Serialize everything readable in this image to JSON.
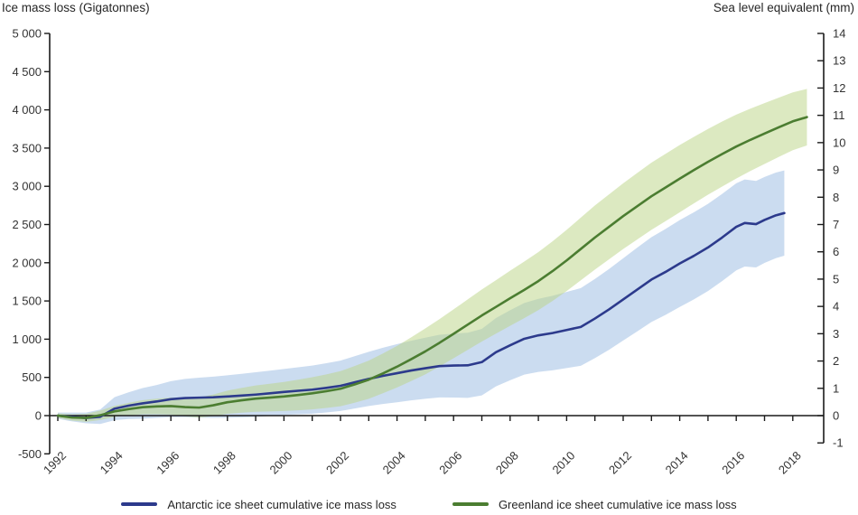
{
  "header": {
    "left_axis_title": "Ice mass loss (Gigatonnes)",
    "right_axis_title": "Sea level equivalent (mm)"
  },
  "legend": [
    {
      "label": "Antarctic ice sheet cumulative ice mass loss",
      "color": "#2c3a8c"
    },
    {
      "label": "Greenland ice sheet cumulative ice mass loss",
      "color": "#4b7d31"
    }
  ],
  "colors": {
    "antarctic_line": "#2c3a8c",
    "antarctic_band": "#9cbce2",
    "greenland_line": "#4b7d31",
    "greenland_band": "#bcd489",
    "axis": "#1a1a1a",
    "tick_text": "#333333",
    "background": "#ffffff"
  },
  "chart_data": {
    "type": "line",
    "title": "",
    "xlabel": "",
    "ylabel_left": "Ice mass loss (Gigatonnes)",
    "ylabel_right": "Sea level equivalent (mm)",
    "grid": false,
    "legend_position": "bottom",
    "xlim": [
      1991.7,
      2018.8
    ],
    "ylim_left": [
      -500,
      5000
    ],
    "ylim_right": [
      -1,
      14
    ],
    "x_axis": {
      "tick_years": [
        1992,
        1993,
        1994,
        1995,
        1996,
        1997,
        1998,
        1999,
        2000,
        2001,
        2002,
        2003,
        2004,
        2005,
        2006,
        2007,
        2008,
        2009,
        2010,
        2011,
        2012,
        2013,
        2014,
        2015,
        2016,
        2017,
        2018
      ],
      "label_years": [
        1992,
        1994,
        1996,
        1998,
        2000,
        2002,
        2004,
        2006,
        2008,
        2010,
        2012,
        2014,
        2016,
        2018
      ],
      "tick_labels": [
        "1992",
        "1994",
        "1996",
        "1998",
        "2000",
        "2002",
        "2004",
        "2006",
        "2008",
        "2010",
        "2012",
        "2014",
        "2016",
        "2018"
      ]
    },
    "y_left_axis": {
      "tick_values": [
        5000,
        4500,
        4000,
        3500,
        3000,
        2500,
        2000,
        1500,
        1000,
        500,
        0,
        -500
      ],
      "tick_labels": [
        "5 000",
        "4 500",
        "4 000",
        "3 500",
        "3 000",
        "2 500",
        "2 000",
        "1 500",
        "1 000",
        "500",
        "0",
        "-500"
      ]
    },
    "y_right_axis": {
      "tick_values": [
        14,
        13,
        12,
        11,
        10,
        9,
        8,
        7,
        6,
        5,
        4,
        3,
        2,
        1,
        0,
        -1
      ],
      "tick_labels": [
        "14",
        "13",
        "12",
        "11",
        "10",
        "9",
        "8",
        "7",
        "6",
        "5",
        "4",
        "3",
        "2",
        "1",
        "0",
        "-1"
      ]
    },
    "series": [
      {
        "id": "antarctic",
        "name": "Antarctic ice sheet cumulative ice mass loss",
        "unit": "Gigatonnes",
        "color": "#2c3a8c",
        "band_color": "#9cbce2",
        "note": "points are [year, cumulative_mass_loss_Gt, uncertainty_half_width_Gt]",
        "points": [
          [
            1992.0,
            0,
            40
          ],
          [
            1992.4,
            -15,
            55
          ],
          [
            1993.0,
            -30,
            70
          ],
          [
            1993.5,
            -15,
            95
          ],
          [
            1994.0,
            90,
            150
          ],
          [
            1994.5,
            130,
            175
          ],
          [
            1995.0,
            160,
            200
          ],
          [
            1995.5,
            185,
            215
          ],
          [
            1996.0,
            215,
            235
          ],
          [
            1996.5,
            230,
            250
          ],
          [
            1997.0,
            235,
            262
          ],
          [
            1997.5,
            240,
            270
          ],
          [
            1998.0,
            250,
            278
          ],
          [
            1998.5,
            262,
            285
          ],
          [
            1999.0,
            275,
            292
          ],
          [
            1999.5,
            292,
            296
          ],
          [
            2000.0,
            310,
            300
          ],
          [
            2000.5,
            325,
            308
          ],
          [
            2001.0,
            340,
            315
          ],
          [
            2001.5,
            363,
            322
          ],
          [
            2002.0,
            390,
            330
          ],
          [
            2002.5,
            435,
            342
          ],
          [
            2003.0,
            480,
            355
          ],
          [
            2003.5,
            520,
            368
          ],
          [
            2004.0,
            555,
            380
          ],
          [
            2004.5,
            590,
            390
          ],
          [
            2005.0,
            620,
            400
          ],
          [
            2005.5,
            648,
            410
          ],
          [
            2006.0,
            655,
            418
          ],
          [
            2006.5,
            658,
            426
          ],
          [
            2007.0,
            700,
            435
          ],
          [
            2007.5,
            830,
            447
          ],
          [
            2008.0,
            920,
            458
          ],
          [
            2008.5,
            1005,
            468
          ],
          [
            2009.0,
            1050,
            478
          ],
          [
            2009.5,
            1080,
            488
          ],
          [
            2010.0,
            1120,
            498
          ],
          [
            2010.5,
            1160,
            508
          ],
          [
            2011.0,
            1270,
            518
          ],
          [
            2011.5,
            1390,
            528
          ],
          [
            2012.0,
            1520,
            538
          ],
          [
            2012.5,
            1650,
            548
          ],
          [
            2013.0,
            1780,
            555
          ],
          [
            2013.5,
            1880,
            562
          ],
          [
            2014.0,
            1990,
            568
          ],
          [
            2014.5,
            2090,
            570
          ],
          [
            2015.0,
            2200,
            570
          ],
          [
            2015.5,
            2330,
            570
          ],
          [
            2016.0,
            2470,
            570
          ],
          [
            2016.3,
            2520,
            570
          ],
          [
            2016.7,
            2505,
            566
          ],
          [
            2017.0,
            2560,
            562
          ],
          [
            2017.4,
            2620,
            560
          ],
          [
            2017.7,
            2650,
            558
          ]
        ]
      },
      {
        "id": "greenland",
        "name": "Greenland ice sheet cumulative ice mass loss",
        "unit": "Gigatonnes",
        "color": "#4b7d31",
        "band_color": "#bcd489",
        "note": "points are [year, cumulative_mass_loss_Gt, uncertainty_half_width_Gt]",
        "points": [
          [
            1992.0,
            0,
            30
          ],
          [
            1992.5,
            -25,
            40
          ],
          [
            1993.0,
            -30,
            52
          ],
          [
            1993.5,
            5,
            62
          ],
          [
            1994.0,
            55,
            72
          ],
          [
            1994.5,
            85,
            82
          ],
          [
            1995.0,
            110,
            92
          ],
          [
            1995.5,
            120,
            102
          ],
          [
            1996.0,
            125,
            112
          ],
          [
            1996.5,
            112,
            122
          ],
          [
            1997.0,
            105,
            132
          ],
          [
            1997.5,
            135,
            142
          ],
          [
            1998.0,
            175,
            152
          ],
          [
            1998.5,
            200,
            162
          ],
          [
            1999.0,
            222,
            172
          ],
          [
            1999.5,
            236,
            181
          ],
          [
            2000.0,
            250,
            190
          ],
          [
            2000.5,
            270,
            200
          ],
          [
            2001.0,
            292,
            210
          ],
          [
            2001.5,
            320,
            220
          ],
          [
            2002.0,
            352,
            230
          ],
          [
            2002.5,
            408,
            240
          ],
          [
            2003.0,
            470,
            250
          ],
          [
            2003.5,
            552,
            260
          ],
          [
            2004.0,
            640,
            272
          ],
          [
            2004.5,
            738,
            286
          ],
          [
            2005.0,
            840,
            300
          ],
          [
            2005.5,
            952,
            310
          ],
          [
            2006.0,
            1070,
            320
          ],
          [
            2006.5,
            1190,
            330
          ],
          [
            2007.0,
            1310,
            340
          ],
          [
            2007.5,
            1422,
            350
          ],
          [
            2008.0,
            1535,
            360
          ],
          [
            2008.5,
            1645,
            370
          ],
          [
            2009.0,
            1760,
            380
          ],
          [
            2009.5,
            1890,
            390
          ],
          [
            2010.0,
            2030,
            400
          ],
          [
            2010.5,
            2180,
            410
          ],
          [
            2011.0,
            2330,
            420
          ],
          [
            2011.5,
            2470,
            425
          ],
          [
            2012.0,
            2610,
            430
          ],
          [
            2012.5,
            2740,
            435
          ],
          [
            2013.0,
            2870,
            440
          ],
          [
            2013.5,
            2985,
            440
          ],
          [
            2014.0,
            3100,
            440
          ],
          [
            2014.5,
            3212,
            435
          ],
          [
            2015.0,
            3320,
            430
          ],
          [
            2015.5,
            3422,
            425
          ],
          [
            2016.0,
            3520,
            418
          ],
          [
            2016.5,
            3608,
            408
          ],
          [
            2017.0,
            3690,
            398
          ],
          [
            2017.5,
            3772,
            388
          ],
          [
            2018.0,
            3850,
            378
          ],
          [
            2018.5,
            3905,
            370
          ]
        ]
      }
    ]
  }
}
